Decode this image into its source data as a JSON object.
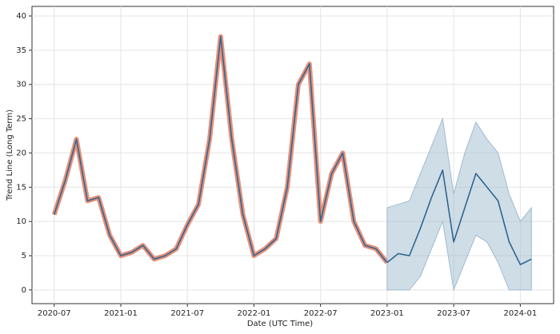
{
  "chart_data": {
    "type": "line",
    "xlabel": "Date (UTC Time)",
    "ylabel": "Trend Line (Long Term)",
    "xlim": [
      "2020-05",
      "2024-04"
    ],
    "xticks": [
      "2020-07",
      "2021-01",
      "2021-07",
      "2022-01",
      "2022-07",
      "2023-01",
      "2023-07",
      "2024-01"
    ],
    "ylim": [
      -2,
      41.4
    ],
    "yticks": [
      0,
      5,
      10,
      15,
      20,
      25,
      30,
      35,
      40
    ],
    "grid": true,
    "series": [
      {
        "color": "#2f6690",
        "outline_color": "#e8907a",
        "x": [
          "2020-07",
          "2020-08",
          "2020-09",
          "2020-10",
          "2020-11",
          "2020-12",
          "2021-01",
          "2021-02",
          "2021-03",
          "2021-04",
          "2021-05",
          "2021-06",
          "2021-07",
          "2021-08",
          "2021-09",
          "2021-10",
          "2021-11",
          "2021-12",
          "2022-01",
          "2022-02",
          "2022-03",
          "2022-04",
          "2022-05",
          "2022-06",
          "2022-07",
          "2022-08",
          "2022-09",
          "2022-10",
          "2022-11",
          "2022-12",
          "2023-01"
        ],
        "values": [
          11,
          16,
          22,
          13,
          13.5,
          8,
          5,
          5.5,
          6.5,
          4.5,
          5,
          6,
          9.5,
          12.5,
          22,
          37,
          22,
          11,
          5,
          6,
          7.5,
          15,
          30,
          33,
          10,
          17,
          20,
          10,
          6.5,
          6,
          4
        ]
      },
      {
        "color": "#2f6690",
        "band_color": "#9fbcd0",
        "x": [
          "2023-01",
          "2023-02",
          "2023-03",
          "2023-04",
          "2023-05",
          "2023-06",
          "2023-07",
          "2023-08",
          "2023-09",
          "2023-10",
          "2023-11",
          "2023-12",
          "2024-01",
          "2024-02"
        ],
        "values": [
          4,
          5.3,
          5,
          9,
          13.5,
          17.5,
          7,
          12,
          17,
          15,
          13,
          7,
          3.7,
          4.5
        ],
        "lower": [
          0,
          0,
          0,
          2,
          6,
          10,
          0,
          4,
          8,
          7,
          4,
          0,
          0,
          0
        ],
        "upper": [
          12,
          12.5,
          13,
          17,
          21,
          25,
          14,
          20,
          24.5,
          22,
          20,
          14,
          10,
          12
        ]
      }
    ]
  }
}
